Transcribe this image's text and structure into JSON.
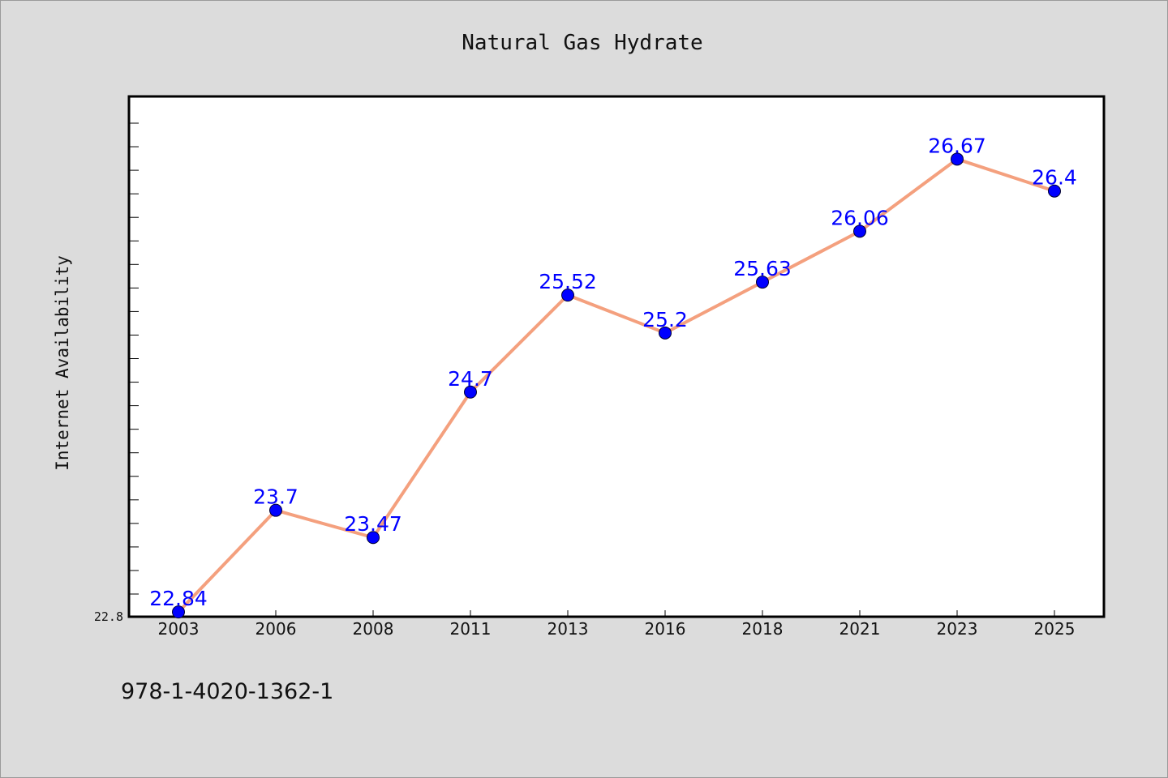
{
  "chart_data": {
    "type": "line",
    "title": "Natural Gas Hydrate",
    "xlabel": "",
    "ylabel": "Internet Availability",
    "categories": [
      "2003",
      "2006",
      "2008",
      "2011",
      "2013",
      "2016",
      "2018",
      "2021",
      "2023",
      "2025"
    ],
    "series": [
      {
        "values": [
          22.84,
          23.7,
          23.47,
          24.7,
          25.52,
          25.2,
          25.63,
          26.06,
          26.67,
          26.4
        ],
        "labels": [
          "22.84",
          "23.7",
          "23.47",
          "24.7",
          "25.52",
          "25.2",
          "25.63",
          "26.06",
          "26.67",
          "26.4"
        ],
        "line_color": "#f4a07e",
        "marker_color": "#0000ff"
      }
    ],
    "yticks": [
      "22.8"
    ],
    "ylim": [
      22.8,
      27.2
    ],
    "grid": false,
    "legend": "none"
  },
  "footer": {
    "text": "978-1-4020-1362-1"
  }
}
